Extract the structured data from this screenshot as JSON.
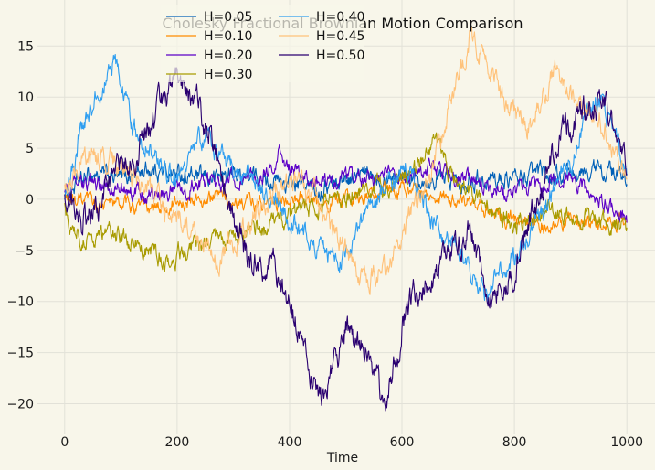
{
  "chart_data": {
    "type": "line",
    "title": "Cholesky Fractional Brownian Motion Comparison",
    "xlabel": "Time",
    "ylabel": "",
    "xlim": [
      -50,
      1050
    ],
    "ylim": [
      -23,
      19.5
    ],
    "x_ticks": [
      0,
      200,
      400,
      600,
      800,
      1000
    ],
    "y_ticks": [
      -20,
      -15,
      -10,
      -5,
      0,
      5,
      10,
      15
    ],
    "grid": true,
    "legend_position": "top-center",
    "n_points": 1001,
    "series": [
      {
        "name": "H=0.05",
        "color": "#0060b8",
        "amp": 1.4,
        "anchors": [
          [
            0,
            0.5
          ],
          [
            50,
            2.5
          ],
          [
            100,
            2
          ],
          [
            150,
            3
          ],
          [
            200,
            2.5
          ],
          [
            250,
            2
          ],
          [
            300,
            2.5
          ],
          [
            350,
            2
          ],
          [
            400,
            1.5
          ],
          [
            450,
            1
          ],
          [
            500,
            2
          ],
          [
            550,
            2.5
          ],
          [
            600,
            2.5
          ],
          [
            650,
            2
          ],
          [
            700,
            2
          ],
          [
            750,
            2
          ],
          [
            800,
            2
          ],
          [
            850,
            2.5
          ],
          [
            900,
            2
          ],
          [
            950,
            3
          ],
          [
            1000,
            2
          ]
        ]
      },
      {
        "name": "H=0.10",
        "color": "#ff8c00",
        "amp": 1.2,
        "anchors": [
          [
            0,
            0
          ],
          [
            50,
            -0.5
          ],
          [
            100,
            -0.5
          ],
          [
            150,
            -1
          ],
          [
            200,
            -0.5
          ],
          [
            250,
            0
          ],
          [
            300,
            0
          ],
          [
            350,
            -0.5
          ],
          [
            400,
            0
          ],
          [
            450,
            -0.5
          ],
          [
            500,
            0
          ],
          [
            550,
            0.5
          ],
          [
            600,
            1
          ],
          [
            650,
            0.5
          ],
          [
            700,
            0
          ],
          [
            750,
            -1
          ],
          [
            800,
            -2
          ],
          [
            850,
            -2.5
          ],
          [
            900,
            -2
          ],
          [
            950,
            -2.5
          ],
          [
            1000,
            -2
          ]
        ]
      },
      {
        "name": "H=0.20",
        "color": "#5b00c7",
        "amp": 1.3,
        "anchors": [
          [
            0,
            1
          ],
          [
            50,
            1.5
          ],
          [
            100,
            1
          ],
          [
            150,
            0.5
          ],
          [
            200,
            1
          ],
          [
            250,
            1.5
          ],
          [
            300,
            2
          ],
          [
            350,
            2
          ],
          [
            380,
            4.5
          ],
          [
            400,
            3
          ],
          [
            450,
            1.5
          ],
          [
            500,
            2
          ],
          [
            550,
            2
          ],
          [
            600,
            2.5
          ],
          [
            650,
            3
          ],
          [
            700,
            2
          ],
          [
            750,
            1
          ],
          [
            800,
            0.5
          ],
          [
            850,
            1.5
          ],
          [
            900,
            2
          ],
          [
            950,
            0
          ],
          [
            1000,
            -2
          ]
        ]
      },
      {
        "name": "H=0.30",
        "color": "#a89b00",
        "amp": 1.5,
        "anchors": [
          [
            0,
            -1
          ],
          [
            30,
            -4
          ],
          [
            80,
            -3.5
          ],
          [
            130,
            -4.5
          ],
          [
            185,
            -6
          ],
          [
            230,
            -4.5
          ],
          [
            300,
            -4
          ],
          [
            350,
            -3
          ],
          [
            400,
            -1.5
          ],
          [
            450,
            -0.5
          ],
          [
            500,
            0
          ],
          [
            550,
            1
          ],
          [
            600,
            2
          ],
          [
            640,
            4
          ],
          [
            660,
            6
          ],
          [
            690,
            2
          ],
          [
            730,
            0
          ],
          [
            800,
            -2.5
          ],
          [
            850,
            -1
          ],
          [
            900,
            -1.5
          ],
          [
            950,
            -2
          ],
          [
            1000,
            -3
          ]
        ]
      },
      {
        "name": "H=0.40",
        "color": "#2e9ef0",
        "amp": 1.7,
        "anchors": [
          [
            0,
            0
          ],
          [
            30,
            7
          ],
          [
            60,
            10
          ],
          [
            90,
            14
          ],
          [
            120,
            7
          ],
          [
            160,
            4
          ],
          [
            200,
            2
          ],
          [
            240,
            6
          ],
          [
            270,
            5
          ],
          [
            300,
            3
          ],
          [
            350,
            1
          ],
          [
            400,
            -2
          ],
          [
            450,
            -5
          ],
          [
            500,
            -6
          ],
          [
            540,
            -1
          ],
          [
            580,
            2
          ],
          [
            620,
            3
          ],
          [
            650,
            -2
          ],
          [
            700,
            -5
          ],
          [
            750,
            -9
          ],
          [
            800,
            -6
          ],
          [
            850,
            -1
          ],
          [
            900,
            4
          ],
          [
            950,
            10
          ],
          [
            1000,
            3
          ]
        ]
      },
      {
        "name": "H=0.45",
        "color": "#ffc27a",
        "amp": 1.8,
        "anchors": [
          [
            0,
            1
          ],
          [
            40,
            4
          ],
          [
            80,
            4
          ],
          [
            130,
            2
          ],
          [
            180,
            -1
          ],
          [
            230,
            -3
          ],
          [
            270,
            -6
          ],
          [
            310,
            -4
          ],
          [
            360,
            0
          ],
          [
            400,
            2
          ],
          [
            450,
            0
          ],
          [
            500,
            -5
          ],
          [
            530,
            -8
          ],
          [
            570,
            -7
          ],
          [
            610,
            -2
          ],
          [
            650,
            2
          ],
          [
            680,
            8
          ],
          [
            720,
            16
          ],
          [
            750,
            14
          ],
          [
            790,
            8
          ],
          [
            830,
            7
          ],
          [
            870,
            13
          ],
          [
            900,
            10
          ],
          [
            950,
            8
          ],
          [
            990,
            3
          ]
        ]
      },
      {
        "name": "H=0.50",
        "color": "#2a0070",
        "amp": 2.2,
        "anchors": [
          [
            0,
            1
          ],
          [
            30,
            -2
          ],
          [
            60,
            -1
          ],
          [
            90,
            3
          ],
          [
            120,
            4
          ],
          [
            160,
            8
          ],
          [
            200,
            12
          ],
          [
            230,
            10
          ],
          [
            260,
            6
          ],
          [
            300,
            -2
          ],
          [
            330,
            -6
          ],
          [
            370,
            -6
          ],
          [
            400,
            -10
          ],
          [
            430,
            -16
          ],
          [
            460,
            -20
          ],
          [
            500,
            -13
          ],
          [
            540,
            -15
          ],
          [
            570,
            -20
          ],
          [
            610,
            -10
          ],
          [
            640,
            -8
          ],
          [
            680,
            -6
          ],
          [
            720,
            -3
          ],
          [
            760,
            -10
          ],
          [
            800,
            -7
          ],
          [
            840,
            0
          ],
          [
            880,
            6
          ],
          [
            920,
            8
          ],
          [
            960,
            10
          ],
          [
            1000,
            3
          ]
        ]
      }
    ]
  }
}
